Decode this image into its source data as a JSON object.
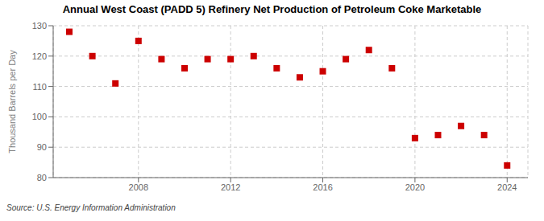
{
  "chart_data": {
    "type": "scatter",
    "title": "Annual West Coast (PADD 5) Refinery Net Production of Petroleum Coke Marketable",
    "ylabel": "Thousand Barrels per Day",
    "source": "Source: U.S. Energy Information Administration",
    "x": [
      2005,
      2006,
      2007,
      2008,
      2009,
      2010,
      2011,
      2012,
      2013,
      2014,
      2015,
      2016,
      2017,
      2018,
      2019,
      2020,
      2021,
      2022,
      2023,
      2024
    ],
    "values": [
      128,
      120,
      111,
      125,
      119,
      116,
      119,
      119,
      120,
      116,
      113,
      115,
      119,
      122,
      116,
      93,
      94,
      97,
      94,
      84
    ],
    "color": "#cc0000",
    "marker": "square",
    "xlim": [
      2004.3,
      2024.9
    ],
    "xticks": [
      2008,
      2012,
      2016,
      2020,
      2024
    ],
    "ylim": [
      80,
      130
    ],
    "yticks": [
      80,
      90,
      100,
      110,
      120,
      130
    ],
    "grid": true
  }
}
